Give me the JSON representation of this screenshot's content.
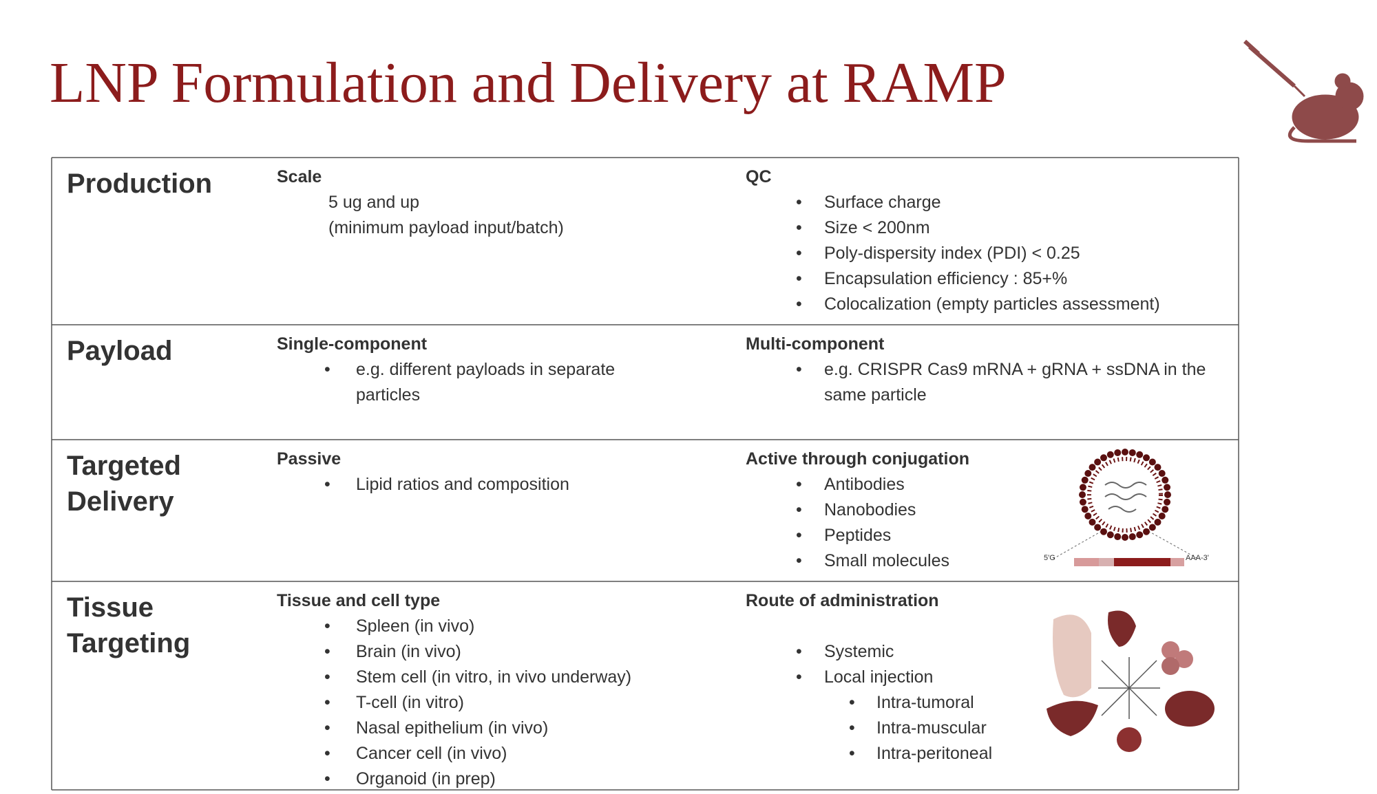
{
  "title": "LNP Formulation and Delivery at RAMP",
  "rows": [
    {
      "label": "Production",
      "left": {
        "heading": "Scale",
        "lines": [
          "5 ug and up",
          "(minimum payload input/batch)"
        ]
      },
      "right": {
        "heading": "QC",
        "items": [
          "Surface charge",
          "Size < 200nm",
          "Poly-dispersity index (PDI) < 0.25",
          "Encapsulation efficiency : 85+%",
          "Colocalization (empty particles assessment)"
        ]
      }
    },
    {
      "label": "Payload",
      "left": {
        "heading": "Single-component",
        "items": [
          "e.g. different payloads in separate particles"
        ]
      },
      "right": {
        "heading": "Multi-component",
        "items": [
          "e.g. CRISPR Cas9 mRNA + gRNA + ssDNA in the same particle"
        ]
      }
    },
    {
      "label": "Targeted Delivery",
      "left": {
        "heading": "Passive",
        "items": [
          "Lipid ratios and composition"
        ]
      },
      "right": {
        "heading": "Active through conjugation",
        "items": [
          "Antibodies",
          "Nanobodies",
          "Peptides",
          "Small molecules"
        ]
      }
    },
    {
      "label": "Tissue Targeting",
      "left": {
        "heading": "Tissue and cell type",
        "items": [
          "Spleen (in vivo)",
          "Brain (in vivo)",
          "Stem cell (in vitro, in vivo underway)",
          "T-cell (in vitro)",
          "Nasal epithelium (in vivo)",
          "Cancer cell (in vivo)",
          "Organoid (in prep)"
        ]
      },
      "right": {
        "heading": "Route of administration",
        "items": [
          "Systemic",
          "Local injection"
        ],
        "subitems": [
          "Intra-tumoral",
          "Intra-muscular",
          "Intra-peritoneal"
        ]
      }
    }
  ],
  "lnp_diagram": {
    "left_label": "5'G",
    "right_label": "AAA-3'"
  }
}
